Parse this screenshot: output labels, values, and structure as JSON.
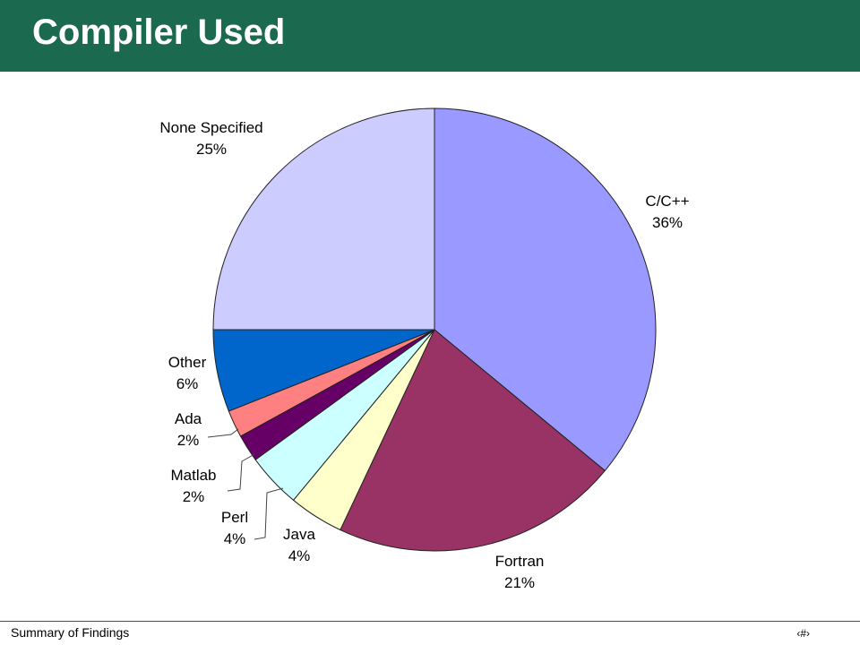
{
  "slide": {
    "title": "Compiler Used",
    "footer": "Summary of Findings",
    "page_number": "‹#›"
  },
  "colors": {
    "header_bg": "#1b6a4f",
    "c_cpp": "#9999ff",
    "fortran": "#993366",
    "java": "#ffffcc",
    "perl": "#ccffff",
    "matlab": "#660066",
    "ada": "#ff8080",
    "other": "#0066cc",
    "none_specified": "#ccccff"
  },
  "chart_data": {
    "type": "pie",
    "title": "",
    "slices": [
      {
        "label": "C/C++",
        "value": 36,
        "pct_label": "36%",
        "color": "#9999ff"
      },
      {
        "label": "Fortran",
        "value": 21,
        "pct_label": "21%",
        "color": "#993366"
      },
      {
        "label": "Java",
        "value": 4,
        "pct_label": "4%",
        "color": "#ffffcc"
      },
      {
        "label": "Perl",
        "value": 4,
        "pct_label": "4%",
        "color": "#ccffff"
      },
      {
        "label": "Matlab",
        "value": 2,
        "pct_label": "2%",
        "color": "#660066"
      },
      {
        "label": "Ada",
        "value": 2,
        "pct_label": "2%",
        "color": "#ff8080"
      },
      {
        "label": "Other",
        "value": 6,
        "pct_label": "6%",
        "color": "#0066cc"
      },
      {
        "label": "None Specified",
        "value": 25,
        "pct_label": "25%",
        "color": "#ccccff"
      }
    ],
    "start_angle": "12 o'clock",
    "direction": "clockwise",
    "legend": "none"
  }
}
